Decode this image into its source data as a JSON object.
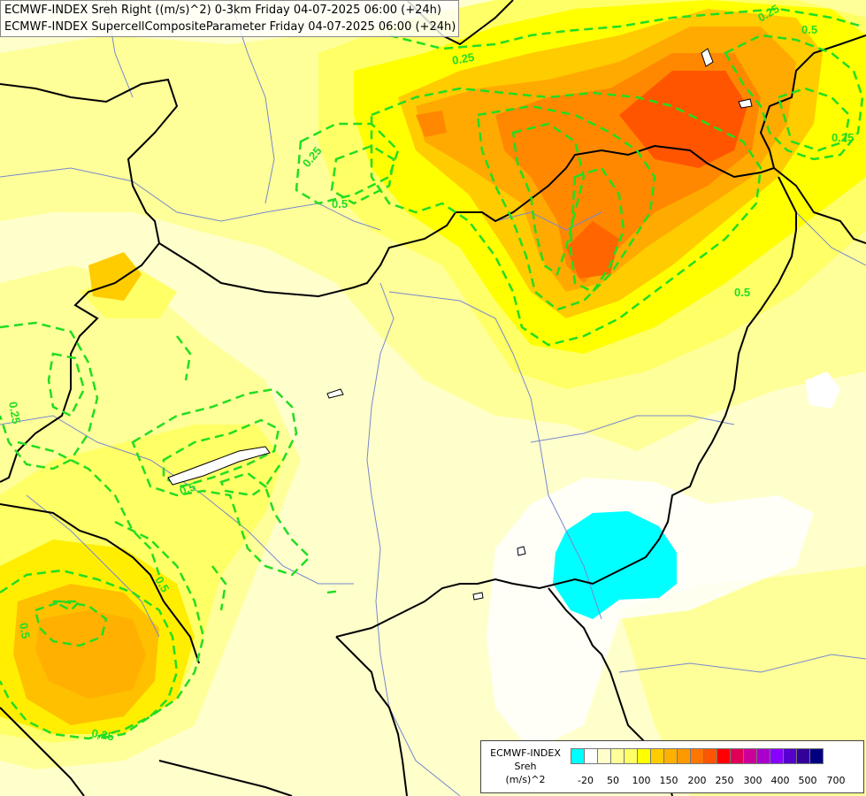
{
  "header": {
    "line1": "ECMWF-INDEX Sreh Right ((m/s)^2) 0-3km Friday 04-07-2025 06:00 (+24h)",
    "line2": "ECMWF-INDEX SupercellCompositeParameter Friday 04-07-2025 06:00 (+24h)"
  },
  "legend": {
    "model": "ECMWF-INDEX",
    "variable": "Sreh",
    "unit": "(m/s)^2",
    "colors": [
      "#00ffff",
      "#ffffff",
      "#ffffcc",
      "#ffff99",
      "#ffff66",
      "#ffff00",
      "#ffcc00",
      "#ffb000",
      "#ff9900",
      "#ff7700",
      "#ff5500",
      "#ff0000",
      "#e00055",
      "#cc0099",
      "#aa00cc",
      "#8800ff",
      "#5500cc",
      "#330099",
      "#000080"
    ],
    "ticks": [
      "-20",
      "50",
      "100",
      "150",
      "200",
      "250",
      "300",
      "400",
      "500",
      "700"
    ]
  },
  "contour_labels": [
    "0.25",
    "0.5",
    "0.25",
    "0.5",
    "0.5",
    "0.25",
    "0.5",
    "0.5",
    "0.25",
    "0.5",
    "0.25",
    "0.25"
  ]
}
